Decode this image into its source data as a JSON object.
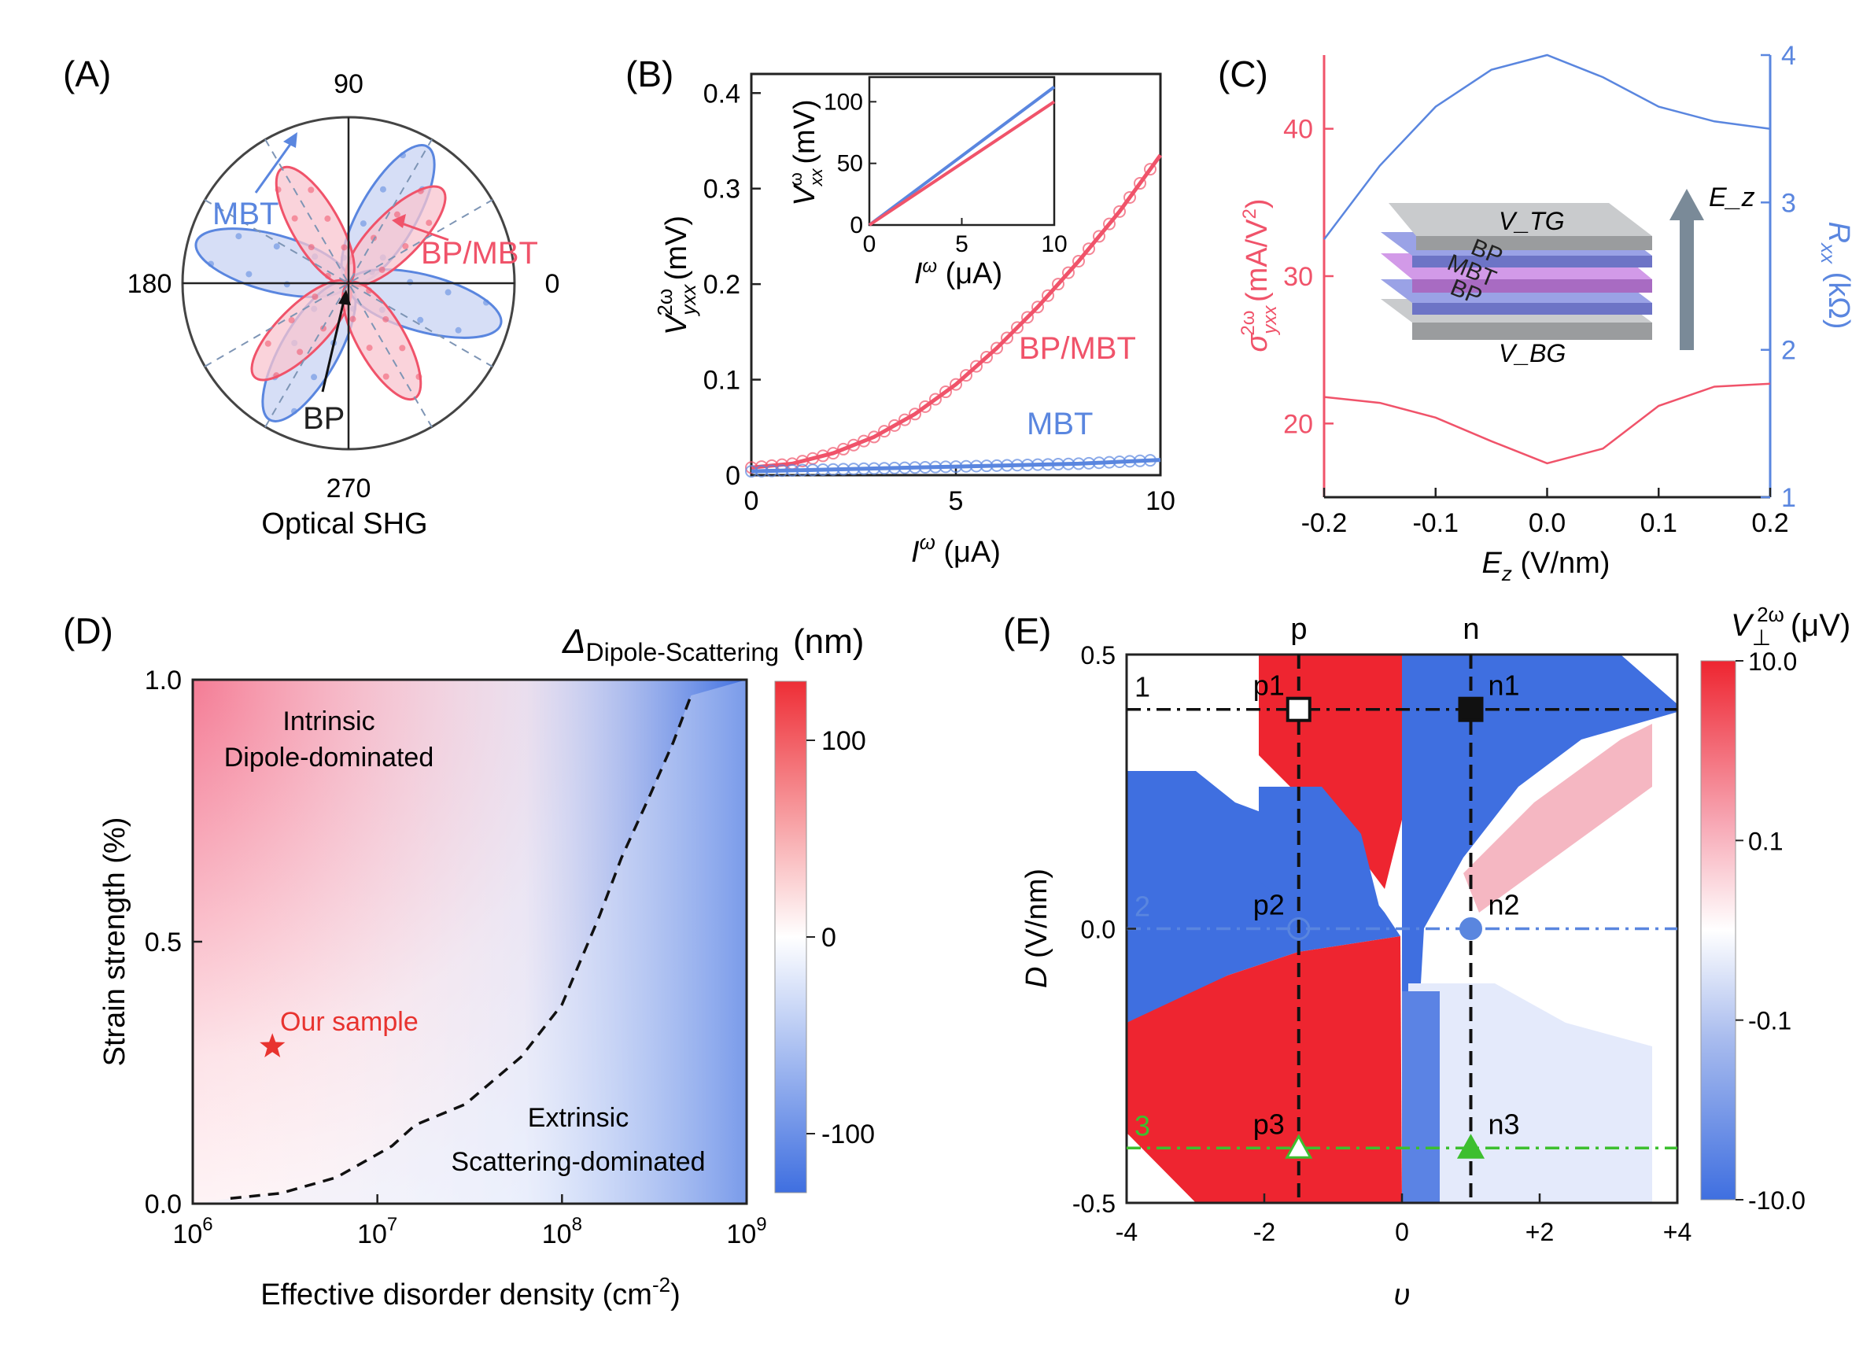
{
  "panels": {
    "A": {
      "label": "(A)"
    },
    "B": {
      "label": "(B)"
    },
    "C": {
      "label": "(C)"
    },
    "D": {
      "label": "(D)"
    },
    "E": {
      "label": "(E)"
    }
  },
  "colors": {
    "red": "#f0536a",
    "blue": "#5a86df",
    "black": "#111111",
    "green": "#3dbf2f",
    "dashed_grey": "#7e95b5"
  },
  "chart_data": [
    {
      "panel": "A",
      "type": "polar",
      "angle_ticks": [
        "90",
        "180",
        "0",
        "270"
      ],
      "xlabel": "Optical SHG",
      "series": [
        {
          "name": "MBT",
          "lobe_angles_deg": [
            60,
            165,
            240,
            345
          ]
        },
        {
          "name": "BP/MBT",
          "lobe_angles_deg": [
            45,
            120,
            225,
            300
          ]
        }
      ],
      "annotations": [
        "MBT",
        "BP/MBT",
        "BP"
      ]
    },
    {
      "panel": "B",
      "type": "line",
      "xlabel": "I^ω (μA)",
      "ylabel": "V_yxx^2ω (mV)",
      "xlim": [
        0,
        10
      ],
      "ylim": [
        0,
        0.42
      ],
      "xticks": [
        "0",
        "5",
        "10"
      ],
      "yticks": [
        "0",
        "0.1",
        "0.2",
        "0.3",
        "0.4"
      ],
      "x": [
        0,
        1,
        2,
        3,
        4,
        5,
        6,
        7,
        8,
        9,
        10
      ],
      "series": [
        {
          "name": "BP/MBT",
          "values": [
            0.008,
            0.012,
            0.023,
            0.04,
            0.064,
            0.095,
            0.133,
            0.176,
            0.224,
            0.276,
            0.335
          ]
        },
        {
          "name": "MBT",
          "values": [
            0.004,
            0.005,
            0.006,
            0.007,
            0.008,
            0.009,
            0.01,
            0.011,
            0.012,
            0.014,
            0.016
          ]
        }
      ],
      "inset": {
        "type": "line",
        "xlabel": "I^ω (μA)",
        "ylabel": "V_xx^ω (mV)",
        "xlim": [
          0,
          10
        ],
        "ylim": [
          0,
          120
        ],
        "xticks": [
          "0",
          "5",
          "10"
        ],
        "yticks": [
          "0",
          "50",
          "100"
        ],
        "x": [
          0,
          10
        ],
        "series": [
          {
            "values": [
              0,
              112
            ]
          },
          {
            "values": [
              0,
              100
            ]
          }
        ]
      }
    },
    {
      "panel": "C",
      "type": "line",
      "xlabel": "E_z (V/nm)",
      "ylabel": "σ_yxx^2ω (mA/V²)",
      "y2label": "R_xx (kΩ)",
      "xlim": [
        -0.2,
        0.2
      ],
      "ylim": [
        15,
        45
      ],
      "y2lim": [
        1,
        4
      ],
      "xticks": [
        "-0.2",
        "-0.1",
        "0.0",
        "0.1",
        "0.2"
      ],
      "yticks": [
        "20",
        "30",
        "40"
      ],
      "y2ticks": [
        "1",
        "2",
        "3",
        "4"
      ],
      "x": [
        -0.2,
        -0.15,
        -0.1,
        -0.05,
        0.0,
        0.05,
        0.1,
        0.15,
        0.2
      ],
      "series": [
        {
          "axis": "left",
          "values": [
            21.8,
            21.4,
            20.4,
            18.8,
            17.3,
            18.3,
            21.2,
            22.5,
            22.7
          ]
        },
        {
          "axis": "right",
          "values": [
            2.75,
            3.25,
            3.65,
            3.9,
            4.0,
            3.85,
            3.65,
            3.55,
            3.5
          ]
        }
      ],
      "inset_labels": {
        "top": "V_TG",
        "bp1": "BP",
        "mbt": "MBT",
        "bp2": "BP",
        "bottom": "V_BG",
        "field": "E_z"
      }
    },
    {
      "panel": "D",
      "type": "heatmap",
      "title": "Δ_Dipole-Scattering (nm)",
      "xlabel": "Effective disorder density (cm^-2)",
      "ylabel": "Strain strength (%)",
      "xscale": "log",
      "xlim": [
        1000000.0,
        1000000000.0
      ],
      "ylim": [
        0,
        1
      ],
      "xticks": [
        "10^6",
        "10^7",
        "10^8",
        "10^9"
      ],
      "yticks": [
        "0.0",
        "0.5",
        "1.0"
      ],
      "colorbar": {
        "ticks": [
          "100",
          "0",
          "-100"
        ],
        "range": [
          -130,
          130
        ]
      },
      "boundary": {
        "x": [
          1600000.0,
          3000000.0,
          6000000.0,
          12000000.0,
          16000000.0,
          30000000.0,
          60000000.0,
          100000000.0,
          160000000.0,
          210000000.0,
          300000000.0,
          400000000.0,
          500000000.0
        ],
        "y": [
          0.01,
          0.02,
          0.05,
          0.11,
          0.15,
          0.19,
          0.28,
          0.38,
          0.55,
          0.66,
          0.78,
          0.88,
          0.97
        ]
      },
      "point": {
        "label": "Our sample",
        "x": 2700000.0,
        "y": 0.3
      },
      "region_labels": {
        "upper": [
          "Intrinsic",
          "Dipole-dominated"
        ],
        "lower": [
          "Extrinsic",
          "Scattering-dominated"
        ]
      }
    },
    {
      "panel": "E",
      "type": "heatmap",
      "title": "V⊥^2ω (μV)",
      "xlabel": "υ",
      "ylabel": "D (V/nm)",
      "xlim": [
        -4,
        4
      ],
      "ylim": [
        -0.5,
        0.5
      ],
      "xticks": [
        "-4",
        "-2",
        "0",
        "+2",
        "+4"
      ],
      "yticks": [
        "0.5",
        "0.0",
        "-0.5"
      ],
      "colorbar": {
        "ticks": [
          "10.0",
          "0.1",
          "-0.1",
          "-10.0"
        ]
      },
      "column_labels": [
        "p",
        "n"
      ],
      "column_x": [
        -1.5,
        1.0
      ],
      "row_labels": [
        "1",
        "2",
        "3"
      ],
      "row_y": [
        0.4,
        0.0,
        -0.4
      ],
      "points": [
        {
          "label": "p1",
          "x": -1.5,
          "y": 0.4
        },
        {
          "label": "n1",
          "x": 1.0,
          "y": 0.4
        },
        {
          "label": "p2",
          "x": -1.5,
          "y": 0.0
        },
        {
          "label": "n2",
          "x": 1.0,
          "y": 0.0
        },
        {
          "label": "p3",
          "x": -1.5,
          "y": -0.4
        },
        {
          "label": "n3",
          "x": 1.0,
          "y": -0.4
        }
      ]
    }
  ]
}
